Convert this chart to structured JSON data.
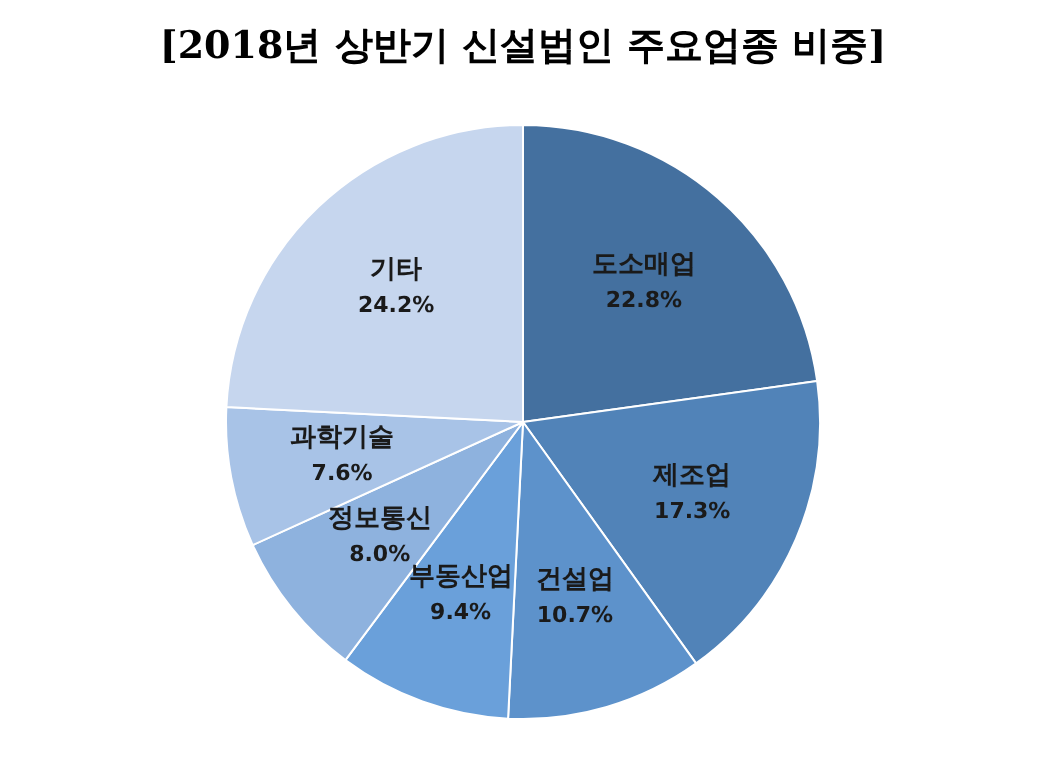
{
  "chart_data": {
    "type": "pie",
    "title": "[2018년 상반기 신설법인 주요업종 비중]",
    "categories": [
      "도소매업",
      "제조업",
      "건설업",
      "부동산업",
      "정보통신",
      "과학기술",
      "기타"
    ],
    "values": [
      22.8,
      17.3,
      10.7,
      9.4,
      8.0,
      7.6,
      24.2
    ],
    "value_labels": [
      "22.8%",
      "17.3%",
      "10.7%",
      "9.4%",
      "8.0%",
      "7.6%",
      "24.2%"
    ],
    "colors": [
      "#44709f",
      "#5183b8",
      "#5d92cb",
      "#6aa0da",
      "#8eb2de",
      "#a8c3e7",
      "#c6d6ee"
    ]
  }
}
